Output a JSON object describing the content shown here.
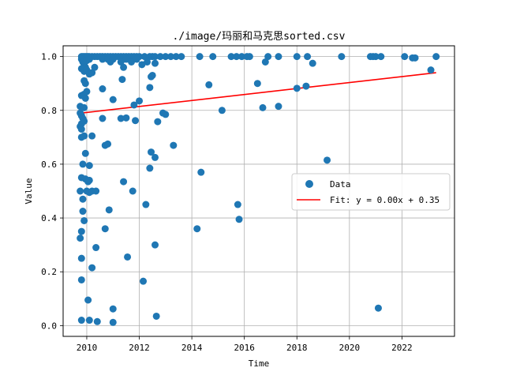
{
  "chart_data": {
    "type": "scatter",
    "title": "./image/玛丽和马克思sorted.csv",
    "xlabel": "Time",
    "ylabel": "Value",
    "xlim": [
      2009.1,
      2024.0
    ],
    "ylim": [
      -0.04,
      1.04
    ],
    "xticks": [
      2010,
      2012,
      2014,
      2016,
      2018,
      2020,
      2022
    ],
    "yticks": [
      0.0,
      0.2,
      0.4,
      0.6,
      0.8,
      1.0
    ],
    "grid": true,
    "legend_position": "center-right",
    "colors": {
      "points": "#1f77b4",
      "fit": "#ff0000",
      "grid": "#b0b0b0"
    },
    "series": [
      {
        "name": "Data",
        "kind": "scatter",
        "points": [
          [
            2009.8,
            1.0
          ],
          [
            2009.85,
            1.0
          ],
          [
            2009.9,
            1.0
          ],
          [
            2009.95,
            1.0
          ],
          [
            2010.0,
            1.0
          ],
          [
            2010.05,
            1.0
          ],
          [
            2010.1,
            1.0
          ],
          [
            2010.2,
            1.0
          ],
          [
            2010.3,
            1.0
          ],
          [
            2010.4,
            1.0
          ],
          [
            2010.5,
            1.0
          ],
          [
            2010.6,
            1.0
          ],
          [
            2010.7,
            1.0
          ],
          [
            2010.8,
            1.0
          ],
          [
            2010.9,
            1.0
          ],
          [
            2011.0,
            1.0
          ],
          [
            2011.1,
            1.0
          ],
          [
            2011.2,
            1.0
          ],
          [
            2011.3,
            1.0
          ],
          [
            2011.4,
            1.0
          ],
          [
            2011.5,
            1.0
          ],
          [
            2011.6,
            1.0
          ],
          [
            2011.7,
            1.0
          ],
          [
            2011.8,
            1.0
          ],
          [
            2011.9,
            1.0
          ],
          [
            2012.0,
            1.0
          ],
          [
            2012.2,
            1.0
          ],
          [
            2012.4,
            1.0
          ],
          [
            2012.5,
            1.0
          ],
          [
            2012.6,
            1.0
          ],
          [
            2012.8,
            1.0
          ],
          [
            2013.0,
            1.0
          ],
          [
            2013.2,
            1.0
          ],
          [
            2013.4,
            1.0
          ],
          [
            2013.6,
            1.0
          ],
          [
            2014.3,
            1.0
          ],
          [
            2014.8,
            1.0
          ],
          [
            2015.5,
            1.0
          ],
          [
            2015.7,
            1.0
          ],
          [
            2015.9,
            1.0
          ],
          [
            2016.1,
            1.0
          ],
          [
            2016.2,
            1.0
          ],
          [
            2016.9,
            1.0
          ],
          [
            2017.3,
            1.0
          ],
          [
            2018.0,
            1.0
          ],
          [
            2018.4,
            1.0
          ],
          [
            2019.7,
            1.0
          ],
          [
            2020.8,
            1.0
          ],
          [
            2020.9,
            1.0
          ],
          [
            2021.0,
            1.0
          ],
          [
            2021.2,
            1.0
          ],
          [
            2022.1,
            1.0
          ],
          [
            2022.4,
            0.995
          ],
          [
            2022.5,
            0.995
          ],
          [
            2023.3,
            1.0
          ],
          [
            2009.8,
            0.99
          ],
          [
            2009.85,
            0.98
          ],
          [
            2009.9,
            0.97
          ],
          [
            2009.95,
            0.96
          ],
          [
            2010.0,
            0.985
          ],
          [
            2010.1,
            0.99
          ],
          [
            2010.3,
            0.96
          ],
          [
            2010.6,
            0.99
          ],
          [
            2010.8,
            0.99
          ],
          [
            2010.9,
            0.98
          ],
          [
            2011.0,
            0.99
          ],
          [
            2011.3,
            0.98
          ],
          [
            2011.4,
            0.96
          ],
          [
            2011.5,
            0.99
          ],
          [
            2011.7,
            0.98
          ],
          [
            2011.9,
            0.99
          ],
          [
            2012.1,
            0.97
          ],
          [
            2012.3,
            0.98
          ],
          [
            2012.6,
            0.975
          ],
          [
            2016.8,
            0.98
          ],
          [
            2018.6,
            0.975
          ],
          [
            2009.8,
            0.955
          ],
          [
            2009.9,
            0.945
          ],
          [
            2010.0,
            0.95
          ],
          [
            2010.1,
            0.935
          ],
          [
            2010.2,
            0.94
          ],
          [
            2011.35,
            0.915
          ],
          [
            2012.45,
            0.925
          ],
          [
            2012.5,
            0.93
          ],
          [
            2009.9,
            0.91
          ],
          [
            2009.95,
            0.9
          ],
          [
            2012.4,
            0.885
          ],
          [
            2014.65,
            0.895
          ],
          [
            2016.5,
            0.9
          ],
          [
            2018.0,
            0.882
          ],
          [
            2018.35,
            0.89
          ],
          [
            2023.1,
            0.95
          ],
          [
            2009.8,
            0.855
          ],
          [
            2009.9,
            0.86
          ],
          [
            2009.95,
            0.845
          ],
          [
            2010.0,
            0.87
          ],
          [
            2010.6,
            0.88
          ],
          [
            2011.0,
            0.84
          ],
          [
            2009.75,
            0.815
          ],
          [
            2009.9,
            0.81
          ],
          [
            2011.8,
            0.82
          ],
          [
            2012.0,
            0.835
          ],
          [
            2015.15,
            0.8
          ],
          [
            2016.7,
            0.81
          ],
          [
            2017.3,
            0.815
          ],
          [
            2009.75,
            0.79
          ],
          [
            2009.8,
            0.78
          ],
          [
            2009.85,
            0.77
          ],
          [
            2009.9,
            0.76
          ],
          [
            2009.8,
            0.75
          ],
          [
            2009.75,
            0.74
          ],
          [
            2009.8,
            0.73
          ],
          [
            2010.6,
            0.77
          ],
          [
            2011.3,
            0.77
          ],
          [
            2011.5,
            0.772
          ],
          [
            2011.85,
            0.762
          ],
          [
            2012.7,
            0.758
          ],
          [
            2012.9,
            0.79
          ],
          [
            2013.0,
            0.785
          ],
          [
            2009.8,
            0.7
          ],
          [
            2009.9,
            0.705
          ],
          [
            2010.2,
            0.705
          ],
          [
            2010.7,
            0.67
          ],
          [
            2010.8,
            0.675
          ],
          [
            2012.45,
            0.645
          ],
          [
            2012.6,
            0.625
          ],
          [
            2013.3,
            0.67
          ],
          [
            2009.95,
            0.64
          ],
          [
            2009.85,
            0.6
          ],
          [
            2010.1,
            0.595
          ],
          [
            2012.4,
            0.585
          ],
          [
            2014.35,
            0.57
          ],
          [
            2019.15,
            0.615
          ],
          [
            2009.8,
            0.55
          ],
          [
            2009.95,
            0.545
          ],
          [
            2010.05,
            0.535
          ],
          [
            2010.1,
            0.54
          ],
          [
            2011.4,
            0.535
          ],
          [
            2009.75,
            0.5
          ],
          [
            2010.0,
            0.5
          ],
          [
            2010.1,
            0.495
          ],
          [
            2010.2,
            0.5
          ],
          [
            2010.35,
            0.5
          ],
          [
            2011.75,
            0.5
          ],
          [
            2009.85,
            0.47
          ],
          [
            2012.25,
            0.45
          ],
          [
            2015.75,
            0.45
          ],
          [
            2009.85,
            0.425
          ],
          [
            2010.85,
            0.43
          ],
          [
            2015.8,
            0.395
          ],
          [
            2009.9,
            0.39
          ],
          [
            2010.7,
            0.36
          ],
          [
            2014.2,
            0.36
          ],
          [
            2009.8,
            0.35
          ],
          [
            2009.75,
            0.325
          ],
          [
            2010.35,
            0.29
          ],
          [
            2012.6,
            0.3
          ],
          [
            2011.55,
            0.255
          ],
          [
            2009.8,
            0.25
          ],
          [
            2010.2,
            0.215
          ],
          [
            2009.8,
            0.17
          ],
          [
            2012.15,
            0.165
          ],
          [
            2010.05,
            0.095
          ],
          [
            2011.0,
            0.062
          ],
          [
            2021.1,
            0.065
          ],
          [
            2012.65,
            0.035
          ],
          [
            2009.8,
            0.02
          ],
          [
            2010.1,
            0.02
          ],
          [
            2010.4,
            0.015
          ],
          [
            2011.0,
            0.012
          ]
        ]
      },
      {
        "name": "Fit: y = 0.00x + 0.35",
        "kind": "line",
        "points": [
          [
            2009.8,
            0.79
          ],
          [
            2023.3,
            0.94
          ]
        ]
      }
    ]
  }
}
